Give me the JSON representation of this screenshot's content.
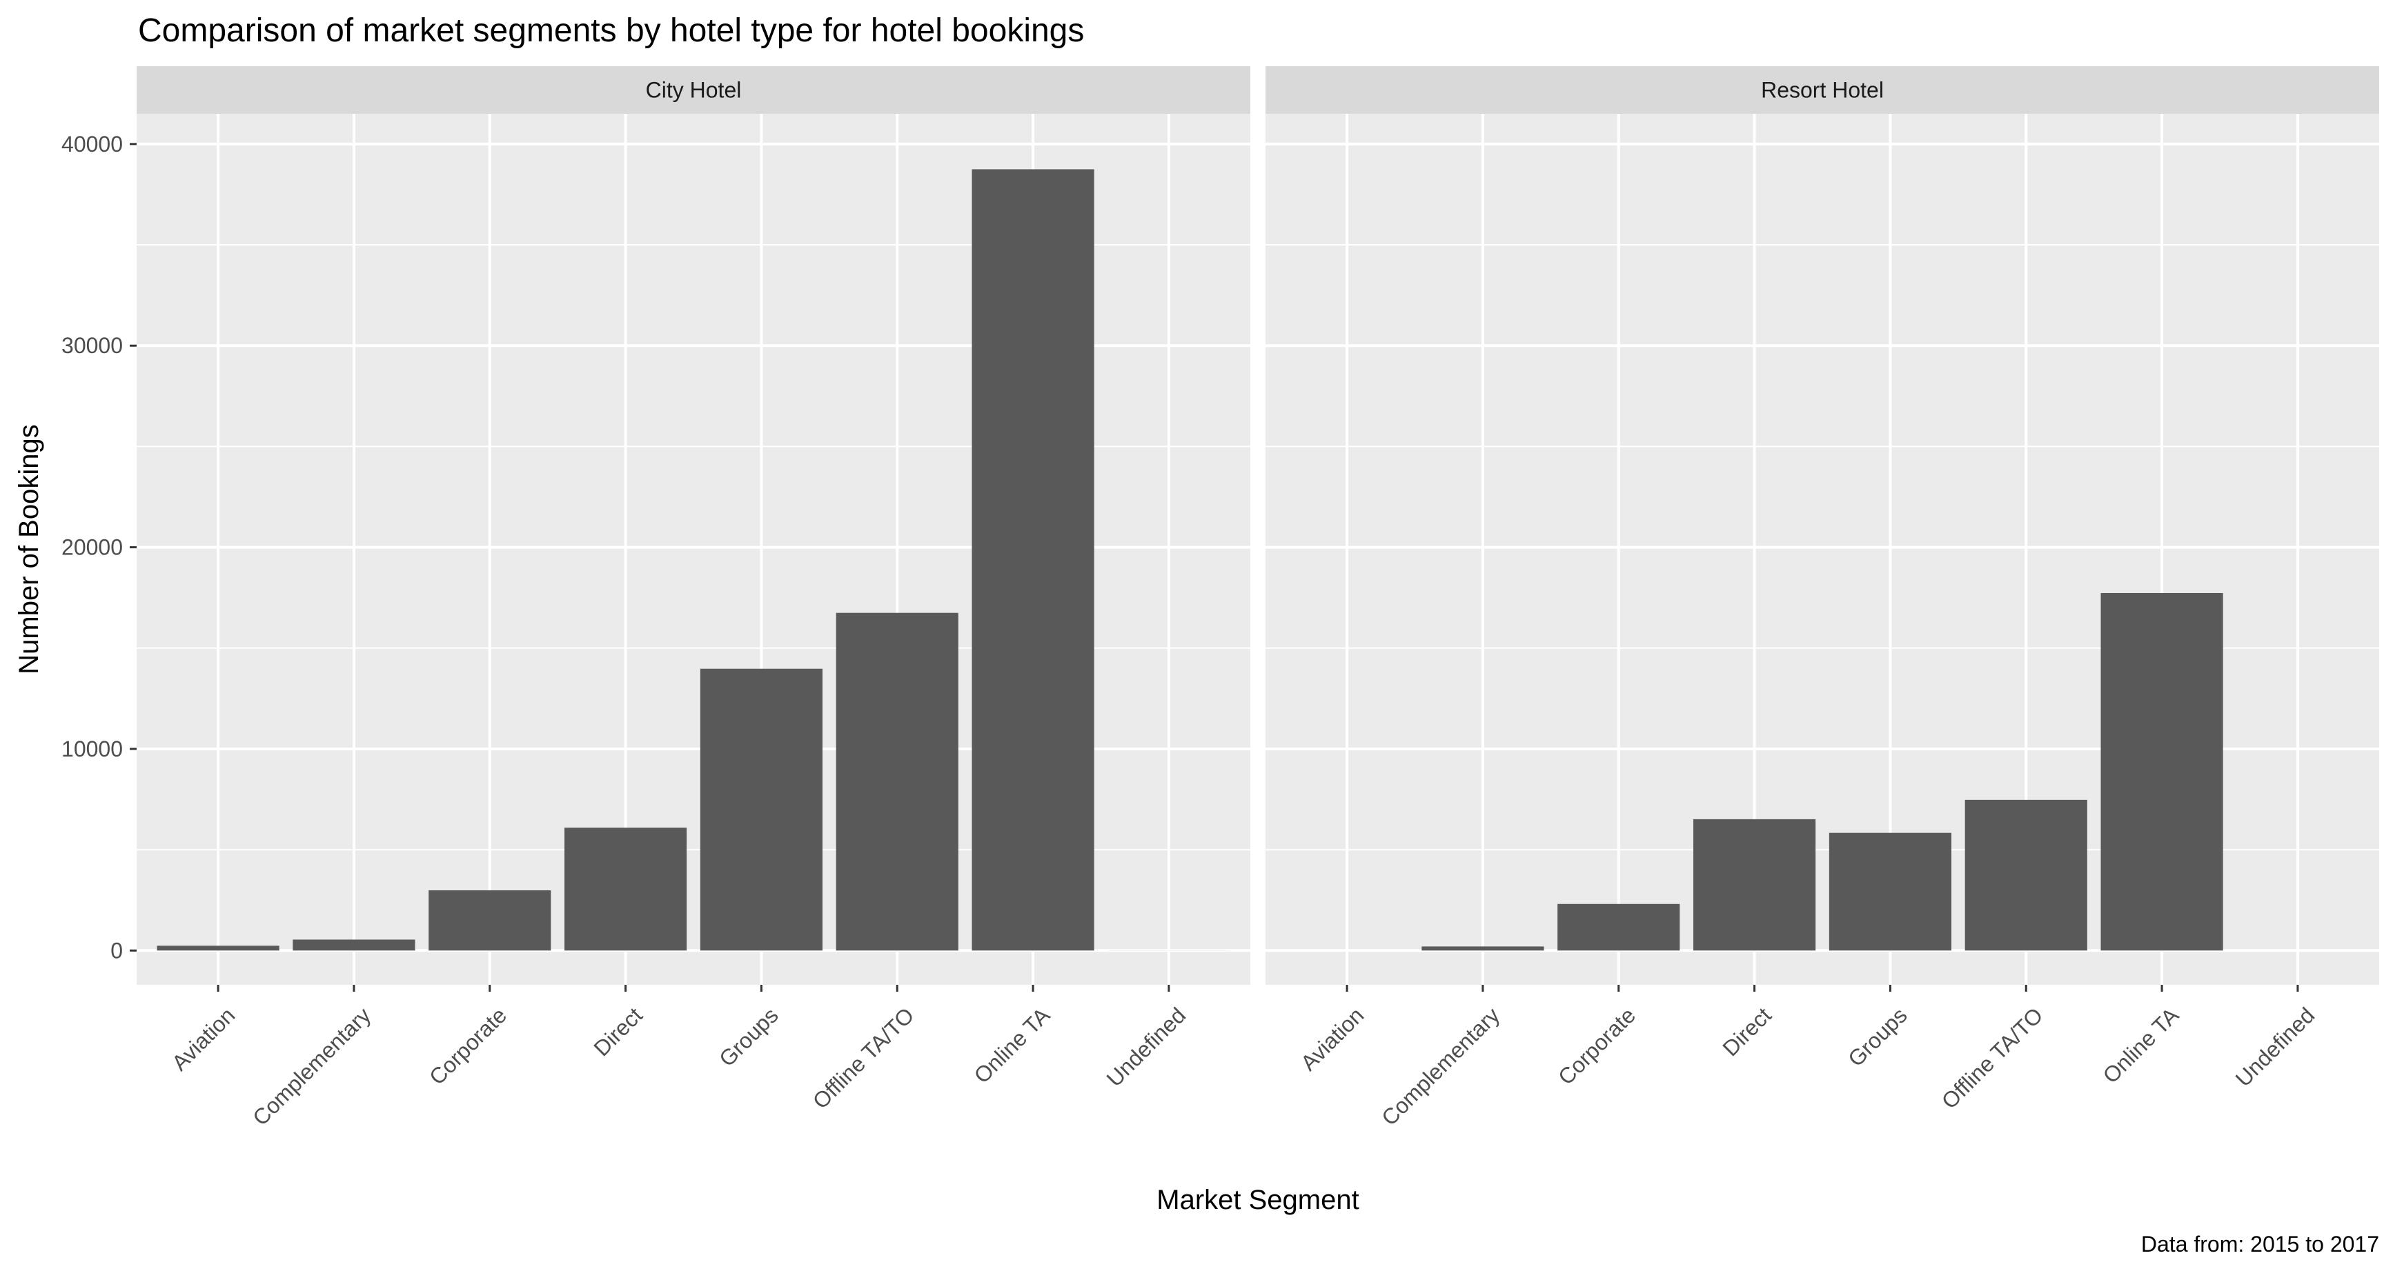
{
  "chart_data": {
    "type": "bar",
    "title": "Comparison of market segments by hotel type for hotel bookings",
    "xlabel": "Market Segment",
    "ylabel": "Number of Bookings",
    "caption": "Data from: 2015 to 2017",
    "categories": [
      "Aviation",
      "Complementary",
      "Corporate",
      "Direct",
      "Groups",
      "Offline TA/TO",
      "Online TA",
      "Undefined"
    ],
    "ylim": [
      -1700,
      41500
    ],
    "yticks": [
      0,
      10000,
      20000,
      30000,
      40000
    ],
    "ytick_labels": [
      "0",
      "10000",
      "20000",
      "30000",
      "40000"
    ],
    "grid": true,
    "bar_color": "#595959",
    "panel_background": "#ebebeb",
    "strip_background": "#d9d9d9",
    "facets": [
      {
        "label": "City Hotel",
        "values": [
          237,
          542,
          2986,
          6093,
          13975,
          16747,
          38748,
          2
        ]
      },
      {
        "label": "Resort Hotel",
        "values": [
          0,
          201,
          2309,
          6513,
          5836,
          7472,
          17729,
          0
        ]
      }
    ]
  }
}
